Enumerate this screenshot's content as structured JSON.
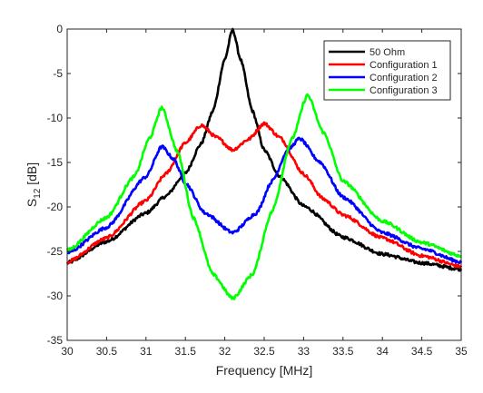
{
  "chart_data": {
    "type": "line",
    "xlabel": "Frequency [MHz]",
    "ylabel_main": "S",
    "ylabel_sub": "12",
    "ylabel_unit": " [dB]",
    "xlim": [
      30,
      35
    ],
    "ylim": [
      -35,
      0
    ],
    "xticks": [
      30,
      30.5,
      31,
      31.5,
      32,
      32.5,
      33,
      33.5,
      34,
      34.5,
      35
    ],
    "yticks": [
      0,
      -5,
      -10,
      -15,
      -20,
      -25,
      -30,
      -35
    ],
    "xtick_labels": [
      "30",
      "30.5",
      "31",
      "31.5",
      "32",
      "32.5",
      "33",
      "33.5",
      "34",
      "34.5",
      "35"
    ],
    "ytick_labels": [
      "0",
      "-5",
      "-10",
      "-15",
      "-20",
      "-25",
      "-30",
      "-35"
    ],
    "grid": false,
    "legend_position": "top-right",
    "series": [
      {
        "name": "50 Ohm",
        "color": "#000000",
        "x": [
          30,
          30.5,
          31,
          31.25,
          31.5,
          31.7,
          31.85,
          32,
          32.1,
          32.2,
          32.35,
          32.5,
          32.7,
          33,
          33.5,
          34,
          34.5,
          35
        ],
        "y": [
          -26.3,
          -23.9,
          -20.7,
          -18.8,
          -16.2,
          -12.9,
          -9.2,
          -3.4,
          0,
          -3.4,
          -9.2,
          -13.6,
          -16.6,
          -19.9,
          -23.4,
          -25.3,
          -26.3,
          -27
        ]
      },
      {
        "name": "Configuration 1",
        "color": "#ff0000",
        "x": [
          30,
          30.5,
          31,
          31.25,
          31.5,
          31.7,
          31.9,
          32.1,
          32.3,
          32.5,
          32.7,
          33,
          33.25,
          33.5,
          34,
          34.5,
          35
        ],
        "y": [
          -26.2,
          -23.5,
          -19.3,
          -16.3,
          -12.8,
          -10.8,
          -12.2,
          -13.6,
          -12.4,
          -10.6,
          -12.2,
          -16.3,
          -19.1,
          -20.9,
          -23.5,
          -25.5,
          -26.7
        ]
      },
      {
        "name": "Configuration 2",
        "color": "#0000ff",
        "x": [
          30,
          30.5,
          31,
          31.2,
          31.35,
          31.5,
          31.75,
          32.1,
          32.4,
          32.6,
          32.8,
          32.95,
          33.2,
          33.5,
          34,
          34.5,
          35
        ],
        "y": [
          -25.2,
          -22.3,
          -16.6,
          -13.2,
          -14.6,
          -17.3,
          -20.7,
          -22.9,
          -20.7,
          -17.1,
          -13.6,
          -12.3,
          -14.9,
          -18.9,
          -22.9,
          -24.7,
          -26.2
        ]
      },
      {
        "name": "Configuration 3",
        "color": "#00ff00",
        "x": [
          30,
          30.5,
          30.85,
          31.05,
          31.2,
          31.4,
          31.6,
          31.85,
          32.1,
          32.35,
          32.6,
          32.85,
          33.05,
          33.25,
          33.5,
          34,
          34.5,
          35
        ],
        "y": [
          -24.9,
          -21.2,
          -16.6,
          -12.2,
          -8.8,
          -13.8,
          -21.2,
          -27.6,
          -30.3,
          -27.6,
          -20.5,
          -12.4,
          -7.4,
          -11.6,
          -17.1,
          -21.6,
          -24,
          -25.5
        ]
      }
    ]
  }
}
